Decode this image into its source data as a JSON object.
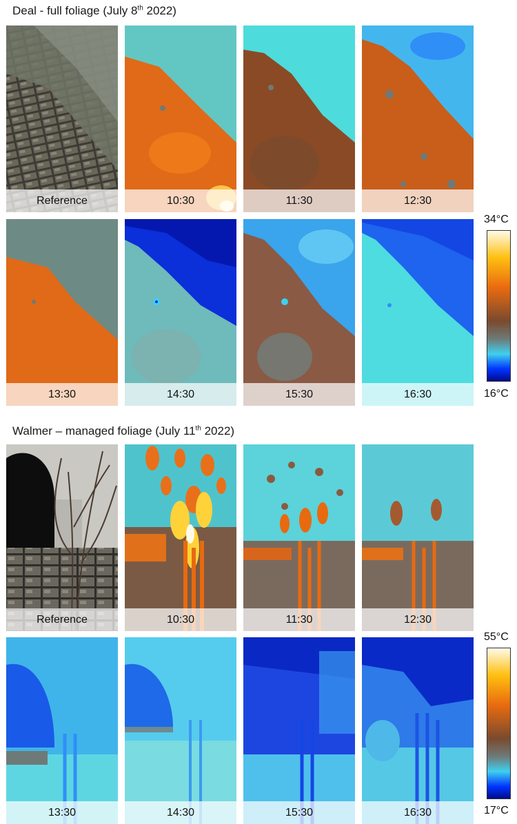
{
  "sections": [
    {
      "title_prefix": "Deal - full foliage (July 8",
      "title_sup": "th",
      "title_suffix": " 2022)",
      "scale_max": "34°C",
      "scale_min": "16°C",
      "captions": [
        "Reference",
        "10:30",
        "11:30",
        "12:30",
        "13:30",
        "14:30",
        "15:30",
        "16:30"
      ]
    },
    {
      "title_prefix": "Walmer – managed foliage (July 11",
      "title_sup": "th",
      "title_suffix": " 2022)",
      "scale_max": "55°C",
      "scale_min": "17°C",
      "captions": [
        "Reference",
        "10:30",
        "11:30",
        "12:30",
        "13:30",
        "14:30",
        "15:30",
        "16:30"
      ]
    }
  ],
  "colormap": [
    "#000a8c",
    "#0034ff",
    "#3fd0ee",
    "#6e7a78",
    "#7a4a2e",
    "#e86a10",
    "#ffbf10",
    "#fffbe8"
  ]
}
